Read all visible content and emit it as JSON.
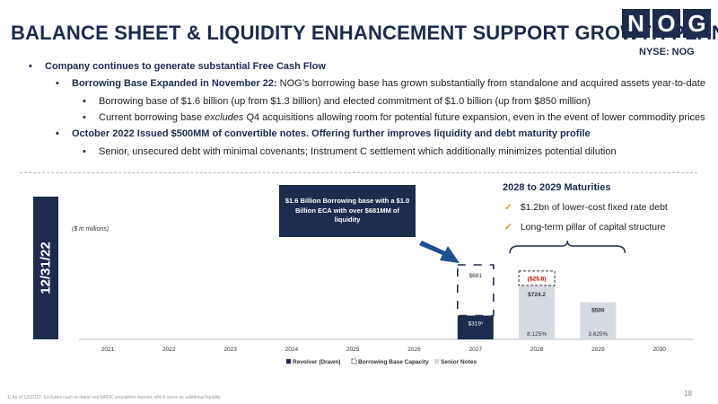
{
  "header": {
    "title": "BALANCE SHEET & LIQUIDITY ENHANCEMENT SUPPORT GROWTH PLAN",
    "logo_letters": [
      "N",
      "O",
      "G"
    ],
    "ticker": "NYSE: NOG"
  },
  "bullets": {
    "b1": "Company continues to generate substantial Free Cash Flow",
    "b2_bold": "Borrowing Base Expanded in November 22:",
    "b2_rest": " NOG’s borrowing base has grown substantially from standalone and acquired assets year-to-date",
    "b3": "Borrowing base of $1.6 billion (up from $1.3 billion) and elected commitment of $1.0 billion (up from $850 million)",
    "b4_pre": "Current borrowing base ",
    "b4_em": "excludes",
    "b4_post": " Q4 acquisitions allowing room for potential future expansion, even in the event of lower commodity prices",
    "b5": "October 2022 Issued $500MM of convertible notes. Offering further improves liquidity and debt maturity profile",
    "b6": "Senior, unsecured debt with minimal covenants; Instrument C settlement which additionally minimizes potential dilution"
  },
  "side_label": "12/31/22",
  "unit_note": "($ in millions)",
  "callout": "$1.6 Billion Borrowing base with a $1.0 Billion ECA with over $681MM of liquidity",
  "maturities": {
    "title": "2028 to 2029 Maturities",
    "items": [
      "$1.2bn of lower-cost fixed rate debt",
      "Long-term pillar of capital structure"
    ],
    "check_color": "#d4a017"
  },
  "chart_data": {
    "type": "bar",
    "categories": [
      "2021",
      "2022",
      "2023",
      "2024",
      "2025",
      "2026",
      "2027",
      "2028",
      "2029",
      "2030"
    ],
    "series": [
      {
        "name": "Revolver (Drawn)",
        "values": [
          0,
          0,
          0,
          0,
          0,
          0,
          319,
          0,
          0,
          0
        ],
        "color": "#1d2b4f"
      },
      {
        "name": "Borrowing Base Capacity",
        "values": [
          0,
          0,
          0,
          0,
          0,
          0,
          681,
          0,
          0,
          0
        ],
        "color": "#1d2b4f"
      },
      {
        "name": "Senior Notes",
        "values": [
          0,
          0,
          0,
          0,
          0,
          0,
          0,
          724.2,
          500,
          0
        ],
        "color": "#d4dbe3"
      }
    ],
    "data_labels": {
      "2027_drawn": "$319¹",
      "2027_capacity": "$681",
      "2028": "$724.2",
      "2029": "$500",
      "2028_reduction": "($25.8)"
    },
    "reduction_2028": -25.8,
    "rates": {
      "2028": "8.125%",
      "2029": "3.625%"
    },
    "reduction_color": "#c00000",
    "arrow_color": "#1d4f91"
  },
  "footnote": "1)   As of 12/31/22. Excludes cash on-hand and MPDC acquisition deposit, which serve as additional liquidity",
  "page_number": "18"
}
